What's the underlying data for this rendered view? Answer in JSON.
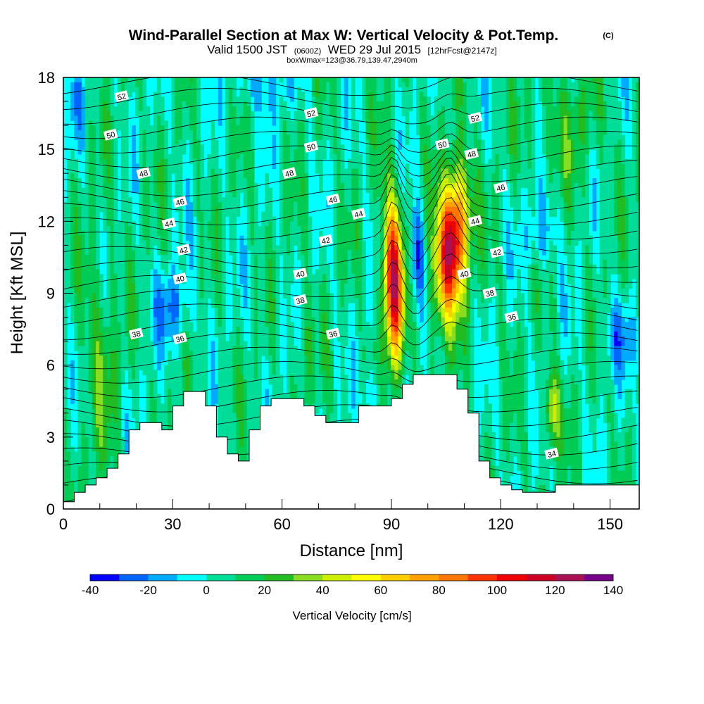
{
  "titles": {
    "main": "Wind-Parallel Section at Max W: Vertical Velocity & Pot.Temp.",
    "copyright": "(C)",
    "valid_prefix": "Valid 1500 JST",
    "valid_z": "(0600Z)",
    "valid_date": "WED 29 Jul 2015",
    "forecast": "[12hrFcst@2147z]",
    "box": "boxWmax=123@36.79,139.47,2940m"
  },
  "chart_data": {
    "type": "heatmap",
    "xlabel": "Distance [nm]",
    "ylabel": "Height [Kft MSL]",
    "xlim": [
      0,
      158
    ],
    "ylim": [
      0,
      18
    ],
    "x_ticks": [
      "0",
      "30",
      "60",
      "90",
      "120",
      "150"
    ],
    "y_ticks": [
      "0",
      "3",
      "6",
      "9",
      "12",
      "15",
      "18"
    ],
    "colorbar": {
      "label": "Vertical Velocity [cm/s]",
      "tick_labels": [
        "-40",
        "-20",
        "0",
        "20",
        "40",
        "60",
        "80",
        "100",
        "120",
        "140"
      ],
      "bounds": [
        -40,
        140
      ],
      "step": 10,
      "colors": [
        "#0000ff",
        "#0066ff",
        "#00aaff",
        "#00ffff",
        "#00dd99",
        "#00cc55",
        "#22bb22",
        "#88dd22",
        "#ccee00",
        "#ffff00",
        "#ffcc00",
        "#ffa000",
        "#ff7700",
        "#ff3300",
        "#ee0000",
        "#cc0022",
        "#aa1155",
        "#770088"
      ]
    },
    "background_value": 5,
    "updraft_cores": [
      {
        "x": 90.5,
        "y": 9.5,
        "peak": 115
      },
      {
        "x": 106.5,
        "y": 11.0,
        "peak": 123
      }
    ],
    "secondary_updraft": {
      "x": 134,
      "y": 4.2,
      "peak": 40
    },
    "theta_contour_labels": [
      {
        "value": "52",
        "x": 16,
        "y": 17.2
      },
      {
        "value": "50",
        "x": 13,
        "y": 15.6
      },
      {
        "value": "48",
        "x": 22,
        "y": 14.0
      },
      {
        "value": "46",
        "x": 32,
        "y": 12.8
      },
      {
        "value": "44",
        "x": 29,
        "y": 11.9
      },
      {
        "value": "42",
        "x": 33,
        "y": 10.8
      },
      {
        "value": "40",
        "x": 32,
        "y": 9.6
      },
      {
        "value": "38",
        "x": 20,
        "y": 7.3
      },
      {
        "value": "36",
        "x": 32,
        "y": 7.1
      },
      {
        "value": "52",
        "x": 68,
        "y": 16.5
      },
      {
        "value": "50",
        "x": 68,
        "y": 15.1
      },
      {
        "value": "48",
        "x": 62,
        "y": 14.0
      },
      {
        "value": "46",
        "x": 74,
        "y": 12.9
      },
      {
        "value": "44",
        "x": 81,
        "y": 12.3
      },
      {
        "value": "42",
        "x": 72,
        "y": 11.2
      },
      {
        "value": "40",
        "x": 65,
        "y": 9.8
      },
      {
        "value": "38",
        "x": 65,
        "y": 8.7
      },
      {
        "value": "36",
        "x": 74,
        "y": 7.3
      },
      {
        "value": "52",
        "x": 113,
        "y": 16.3
      },
      {
        "value": "50",
        "x": 104,
        "y": 15.2
      },
      {
        "value": "48",
        "x": 112,
        "y": 14.8
      },
      {
        "value": "46",
        "x": 120,
        "y": 13.4
      },
      {
        "value": "44",
        "x": 113,
        "y": 12.0
      },
      {
        "value": "42",
        "x": 119,
        "y": 10.7
      },
      {
        "value": "40",
        "x": 110,
        "y": 9.8
      },
      {
        "value": "38",
        "x": 117,
        "y": 9.0
      },
      {
        "value": "36",
        "x": 123,
        "y": 8.0
      },
      {
        "value": "34",
        "x": 134,
        "y": 2.3
      }
    ],
    "terrain": {
      "x": [
        0,
        3,
        6,
        9,
        12,
        15,
        18,
        21,
        24,
        27,
        30,
        33,
        36,
        39,
        42,
        45,
        48,
        51,
        54,
        57,
        60,
        63,
        66,
        69,
        72,
        75,
        78,
        81,
        84,
        87,
        90,
        93,
        96,
        99,
        102,
        105,
        108,
        111,
        114,
        117,
        120,
        123,
        126,
        129,
        132,
        135,
        138,
        141,
        144,
        147,
        150,
        153,
        156,
        158
      ],
      "height": [
        0.3,
        0.7,
        1.0,
        1.3,
        1.7,
        2.3,
        3.3,
        3.6,
        3.6,
        3.3,
        4.3,
        4.9,
        4.9,
        4.3,
        3.0,
        2.3,
        2.0,
        3.3,
        4.3,
        4.6,
        4.6,
        4.6,
        4.3,
        3.9,
        3.6,
        3.6,
        3.6,
        4.3,
        4.3,
        4.3,
        4.6,
        5.2,
        5.6,
        5.6,
        5.6,
        5.6,
        5.0,
        4.0,
        2.0,
        1.3,
        1.0,
        0.8,
        0.7,
        0.7,
        0.7,
        1.0,
        1.0,
        1.0,
        1.0,
        1.0,
        1.0,
        1.0,
        1.0,
        1.0
      ]
    }
  }
}
